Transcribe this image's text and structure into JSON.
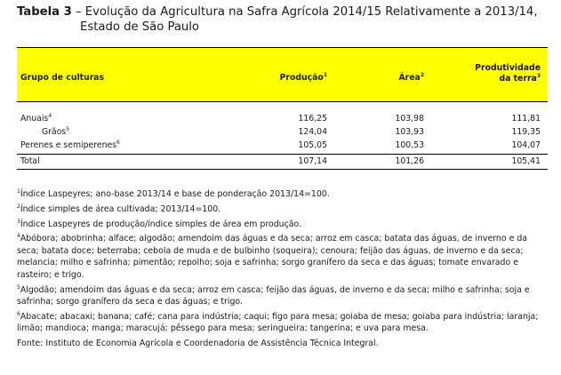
{
  "title": {
    "number": "Tabela 3",
    "line1": " – Evolução da Agricultura na Safra Agrícola 2014/15 Relativamente a 2013/14,",
    "line2": "Estado de São Paulo"
  },
  "table": {
    "headers": {
      "group": "Grupo de culturas",
      "production": "Produção",
      "production_sup": "1",
      "area": "Área",
      "area_sup": "2",
      "productivity_line1": "Produtividade",
      "productivity_line2": "da terra",
      "productivity_sup": "3"
    },
    "rows": [
      {
        "label": "Anuais",
        "sup": "4",
        "production": "116,25",
        "area": "103,98",
        "productivity": "111,81"
      },
      {
        "label": "Grãos",
        "sup": "5",
        "production": "124,04",
        "area": "103,93",
        "productivity": "119,35"
      },
      {
        "label": "Perenes e semiperenes",
        "sup": "6",
        "production": "105,05",
        "area": "100,53",
        "productivity": "104,07"
      }
    ],
    "total": {
      "label": "Total",
      "production": "107,14",
      "area": "101,26",
      "productivity": "105,41"
    }
  },
  "notes": [
    {
      "num": "1",
      "text": "Índice Laspeyres; ano-base 2013/14 e base de ponderação 2013/14=100."
    },
    {
      "num": "2",
      "text": "Índice simples de área cultivada; 2013/14=100."
    },
    {
      "num": "3",
      "text": "Índice Laspeyres de produção/índice simples de área em produção."
    },
    {
      "num": "4",
      "text": "Abóbora; abobrinha; alface; algodão; amendoim das águas e da seca; arroz em casca; batata das águas, de inverno e da seca; batata doce; beterraba; cebola de muda e de bulbinho (soqueira); cenoura; feijão das águas, de inverno e da seca; melancia; milho e safrinha; pimentão; repolho; soja e safrinha; sorgo granífero da seca e das águas; tomate envarado e rasteiro; e trigo."
    },
    {
      "num": "5",
      "text": "Algodão; amendoim das águas e da seca; arroz em casca; feijão das águas, de inverno e da seca; milho e safrinha; soja e safrinha; sorgo granífero da seca e das águas; e trigo."
    },
    {
      "num": "6",
      "text": "Abacate; abacaxi; banana; café; cana para indústria; caqui; figo para mesa; goiaba de mesa; goiaba para indústria; laranja; limão; mandioca; manga; maracujá; pêssego para mesa; seringueira; tangerina; e uva para mesa."
    }
  ],
  "source": "Fonte: Instituto de Economia Agrícola e Coordenadoria de Assistência Técnica Integral."
}
